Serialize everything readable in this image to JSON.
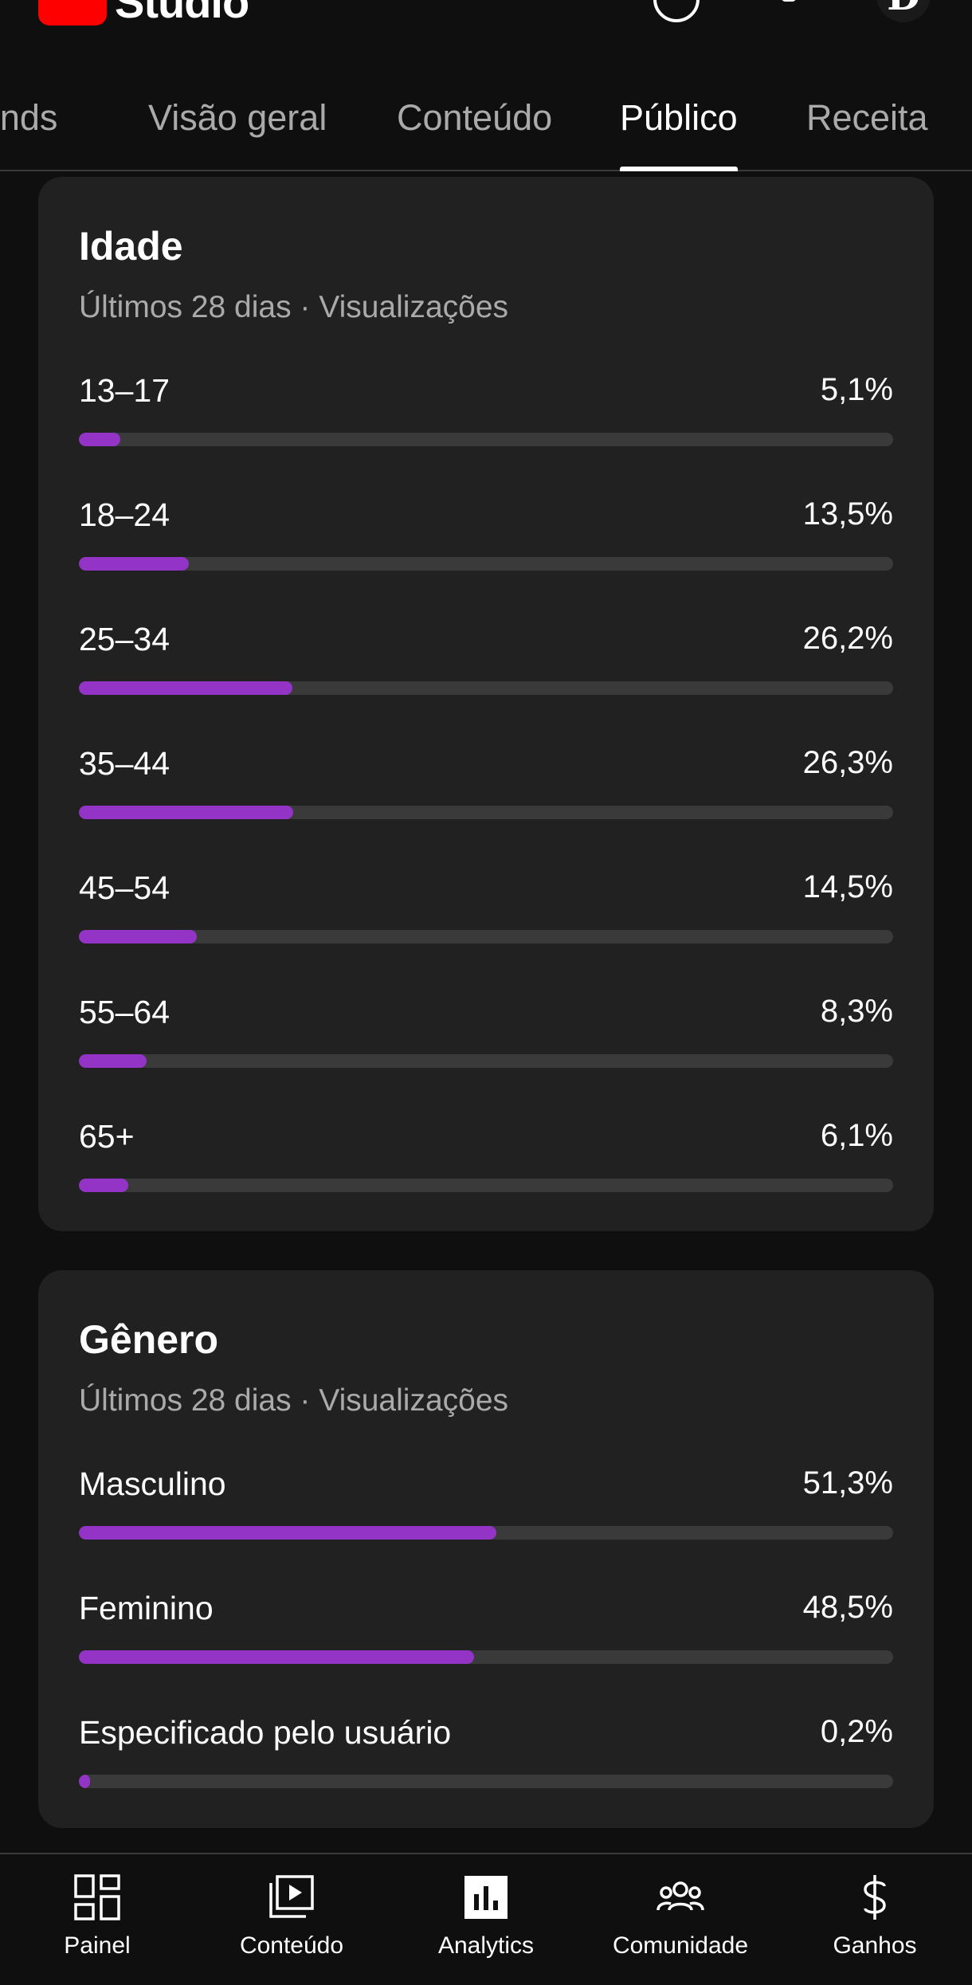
{
  "header": {
    "app_name": "Studio",
    "icons": [
      "youtube-logo",
      "create-icon",
      "bell-icon",
      "avatar"
    ],
    "avatar_initial": "D"
  },
  "tabs": [
    {
      "label": "Trends",
      "active": false
    },
    {
      "label": "Visão geral",
      "active": false
    },
    {
      "label": "Conteúdo",
      "active": false
    },
    {
      "label": "Público",
      "active": true
    },
    {
      "label": "Receita",
      "active": false
    }
  ],
  "age_card": {
    "title": "Idade",
    "subtitle": "Últimos 28 dias · Visualizações",
    "rows": [
      {
        "label": "13–17",
        "value": "5,1%",
        "percent": 5.1
      },
      {
        "label": "18–24",
        "value": "13,5%",
        "percent": 13.5
      },
      {
        "label": "25–34",
        "value": "26,2%",
        "percent": 26.2
      },
      {
        "label": "35–44",
        "value": "26,3%",
        "percent": 26.3
      },
      {
        "label": "45–54",
        "value": "14,5%",
        "percent": 14.5
      },
      {
        "label": "55–64",
        "value": "8,3%",
        "percent": 8.3
      },
      {
        "label": "65+",
        "value": "6,1%",
        "percent": 6.1
      }
    ]
  },
  "gender_card": {
    "title": "Gênero",
    "subtitle": "Últimos 28 dias · Visualizações",
    "rows": [
      {
        "label": "Masculino",
        "value": "51,3%",
        "percent": 51.3
      },
      {
        "label": "Feminino",
        "value": "48,5%",
        "percent": 48.5
      },
      {
        "label": "Especificado pelo usuário",
        "value": "0,2%",
        "percent": 0.2
      }
    ]
  },
  "bottom_nav": [
    {
      "label": "Painel",
      "icon": "dashboard-icon"
    },
    {
      "label": "Conteúdo",
      "icon": "content-icon"
    },
    {
      "label": "Analytics",
      "icon": "analytics-icon"
    },
    {
      "label": "Comunidade",
      "icon": "community-icon"
    },
    {
      "label": "Ganhos",
      "icon": "earn-icon"
    }
  ],
  "colors": {
    "background": "#0f0f0f",
    "card": "#212121",
    "bar_fill": "#9334c6",
    "bar_track": "#3a3a3a",
    "secondary_text": "#aaaaaa"
  }
}
